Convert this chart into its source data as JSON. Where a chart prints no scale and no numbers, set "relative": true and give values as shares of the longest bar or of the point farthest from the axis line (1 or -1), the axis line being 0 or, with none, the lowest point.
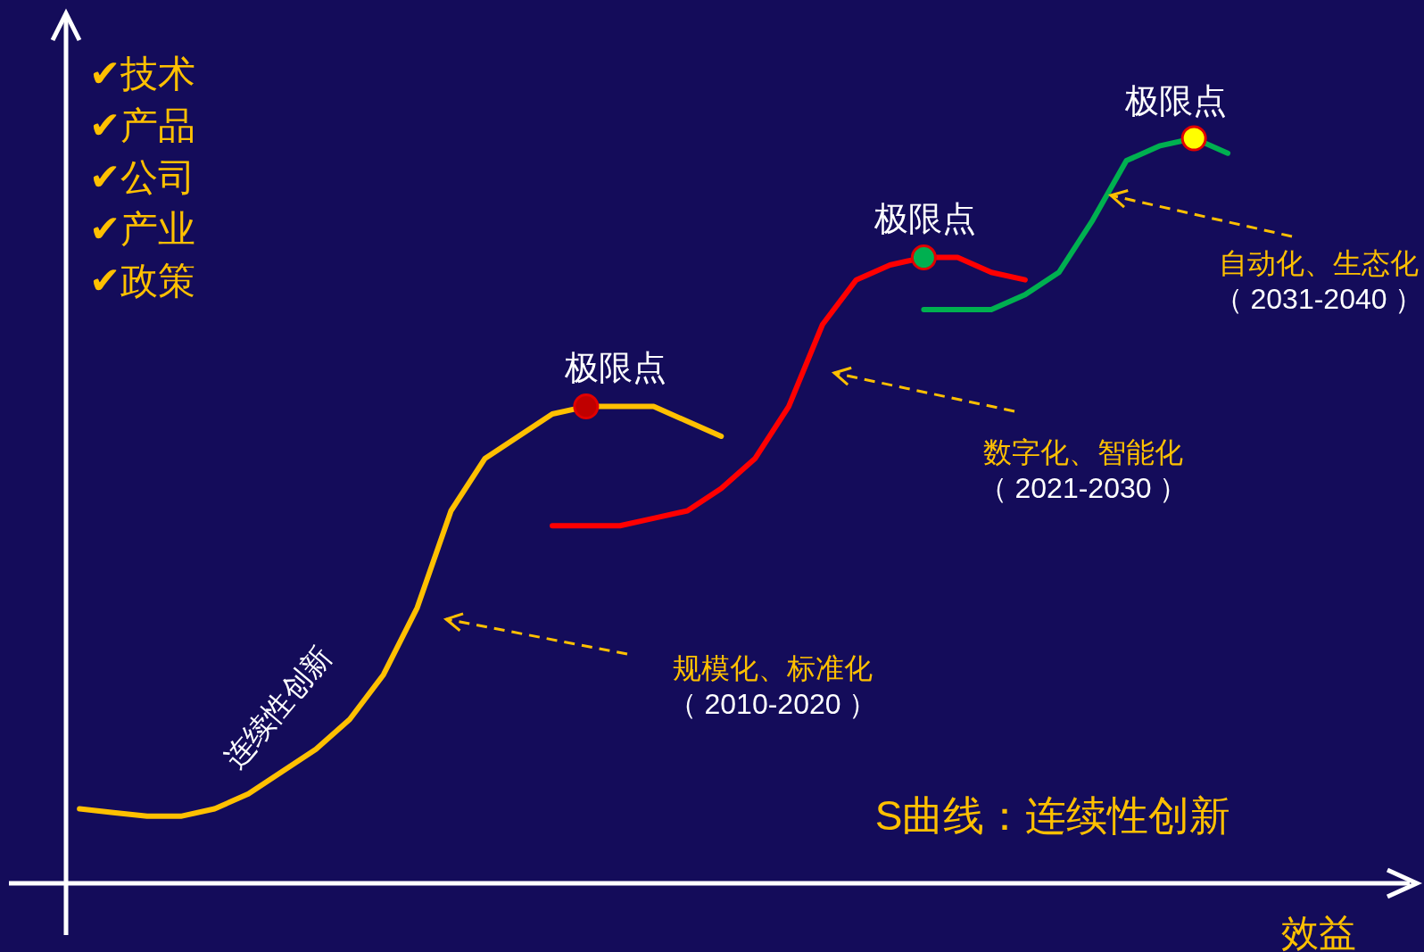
{
  "chart_data": {
    "type": "line",
    "relative": true,
    "title": "S曲线：连续性创新",
    "xlabel": "效益",
    "categories": [
      null,
      null,
      null,
      null,
      null,
      null,
      null,
      null,
      null,
      null,
      null,
      null,
      null,
      null,
      null,
      null,
      null,
      null,
      null,
      null,
      null,
      null,
      null,
      null,
      null,
      null,
      null,
      null,
      null,
      null,
      null,
      null,
      null,
      null,
      null
    ],
    "series": [
      {
        "color": "#ffc000",
        "values": [
          0.1,
          0.095,
          0.09,
          0.09,
          0.1,
          0.12,
          0.15,
          0.18,
          0.22,
          0.28,
          0.37,
          0.5,
          0.57,
          0.6,
          0.63,
          0.64,
          0.64,
          0.64,
          0.62,
          0.6,
          null,
          null,
          null,
          null,
          null,
          null,
          null,
          null,
          null,
          null,
          null,
          null,
          null,
          null,
          null
        ]
      },
      {
        "color": "#ff0000",
        "values": [
          null,
          null,
          null,
          null,
          null,
          null,
          null,
          null,
          null,
          null,
          null,
          null,
          null,
          null,
          0.48,
          0.48,
          0.48,
          0.49,
          0.5,
          0.53,
          0.57,
          0.64,
          0.75,
          0.81,
          0.83,
          0.84,
          0.84,
          0.82,
          0.81,
          null,
          null,
          null,
          null,
          null,
          null
        ]
      },
      {
        "color": "#00b050",
        "values": [
          null,
          null,
          null,
          null,
          null,
          null,
          null,
          null,
          null,
          null,
          null,
          null,
          null,
          null,
          null,
          null,
          null,
          null,
          null,
          null,
          null,
          null,
          null,
          null,
          null,
          0.77,
          0.77,
          0.77,
          0.79,
          0.82,
          0.89,
          0.97,
          0.99,
          1.0,
          0.98
        ]
      }
    ],
    "annotations": [
      "✔技术",
      "✔产品",
      "✔公司",
      "✔产业",
      "✔政策",
      "极限点",
      "极限点",
      "极限点",
      "连续性创新",
      "规模化、标准化",
      "（ 2010-2020 ）",
      "数字化、智能化",
      "（ 2021-2030 ）",
      "自动化、生态化",
      "（ 2031-2040 ）"
    ]
  }
}
